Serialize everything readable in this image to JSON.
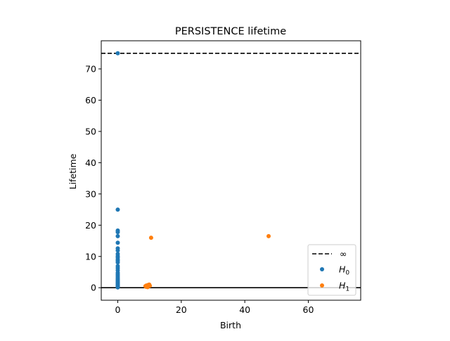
{
  "chart_data": {
    "type": "scatter",
    "title": "PERSISTENCE lifetime",
    "xlabel": "Birth",
    "ylabel": "Lifetime",
    "xlim": [
      -5.2,
      76.5
    ],
    "ylim": [
      -4,
      79
    ],
    "x_ticks": [
      0,
      20,
      40,
      60
    ],
    "y_ticks": [
      0,
      10,
      20,
      30,
      40,
      50,
      60,
      70
    ],
    "grid": false,
    "legend_position": "lower-right",
    "infinity_line": {
      "label": "∞",
      "y": 75,
      "style": "dashed",
      "color": "#000000"
    },
    "zero_line": {
      "y": 0,
      "color": "#000000"
    },
    "series": [
      {
        "name": "H0",
        "name_base": "H",
        "name_sub": "0",
        "color": "#1f77b4",
        "points": [
          [
            0,
            75
          ],
          [
            0,
            25
          ],
          [
            0,
            18.3
          ],
          [
            0,
            17.8
          ],
          [
            0,
            16.5
          ],
          [
            0,
            14.4
          ],
          [
            0,
            12.6
          ],
          [
            0,
            11.9
          ],
          [
            0,
            10.8
          ],
          [
            0,
            10.1
          ],
          [
            0,
            9.6
          ],
          [
            0,
            9.0
          ],
          [
            0,
            8.6
          ],
          [
            0,
            8.1
          ],
          [
            0,
            6.9
          ],
          [
            0,
            6.3
          ],
          [
            0,
            5.6
          ],
          [
            0,
            4.8
          ],
          [
            0,
            4.3
          ],
          [
            0,
            3.8
          ],
          [
            0,
            3.3
          ],
          [
            0,
            2.9
          ],
          [
            0,
            2.5
          ],
          [
            0,
            2.1
          ],
          [
            0,
            1.8
          ],
          [
            0,
            1.5
          ],
          [
            0,
            1.2
          ],
          [
            0,
            0.9
          ],
          [
            0,
            0.6
          ],
          [
            0,
            0.3
          ],
          [
            0,
            0.1
          ]
        ]
      },
      {
        "name": "H1",
        "name_base": "H",
        "name_sub": "1",
        "color": "#ff7f0e",
        "points": [
          [
            10.5,
            16.0
          ],
          [
            47.5,
            16.5
          ],
          [
            8.7,
            0.5
          ],
          [
            9.0,
            0.7
          ],
          [
            9.3,
            0.4
          ],
          [
            9.6,
            0.9
          ],
          [
            9.9,
            1.0
          ],
          [
            10.1,
            0.6
          ],
          [
            9.4,
            0.2
          ],
          [
            8.9,
            0.3
          ]
        ]
      }
    ]
  }
}
